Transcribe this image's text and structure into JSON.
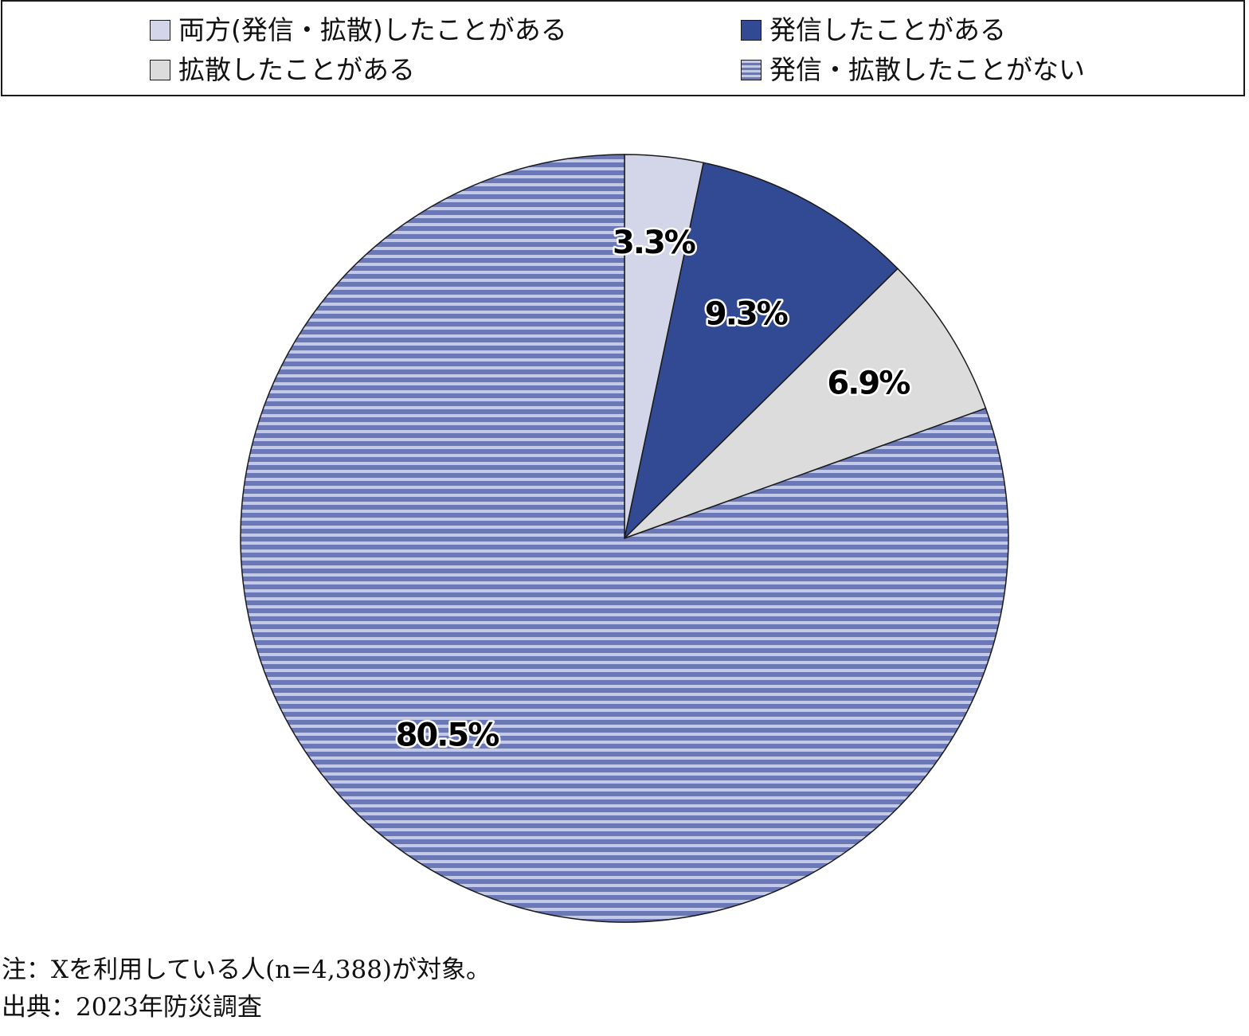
{
  "chart_data": {
    "type": "pie",
    "categories": [
      "両方(発信・拡散)したことがある",
      "発信したことがある",
      "拡散したことがある",
      "発信・拡散したことがない"
    ],
    "values": [
      3.3,
      9.3,
      6.9,
      80.5
    ],
    "value_labels": [
      "3.3%",
      "9.3%",
      "6.9%",
      "80.5%"
    ],
    "colors": [
      "#d3d6e8",
      "#314a93",
      "#dcdcdc",
      "#6b78b8"
    ],
    "stripe_color": "#c4c9e6",
    "start_angle_deg": 0,
    "direction": "clockwise",
    "legend_position": "top"
  },
  "legend": {
    "items": [
      {
        "label": "両方(発信・拡散)したことがある",
        "color": "#d3d6e8",
        "pattern": "solid"
      },
      {
        "label": "発信したことがある",
        "color": "#314a93",
        "pattern": "solid"
      },
      {
        "label": "拡散したことがある",
        "color": "#dcdcdc",
        "pattern": "solid"
      },
      {
        "label": "発信・拡散したことがない",
        "color": "#6b78b8",
        "pattern": "horizontal-stripes"
      }
    ]
  },
  "notes": {
    "note": "注：Xを利用している人(n=4,388)が対象。",
    "source": "出典：2023年防災調査"
  }
}
